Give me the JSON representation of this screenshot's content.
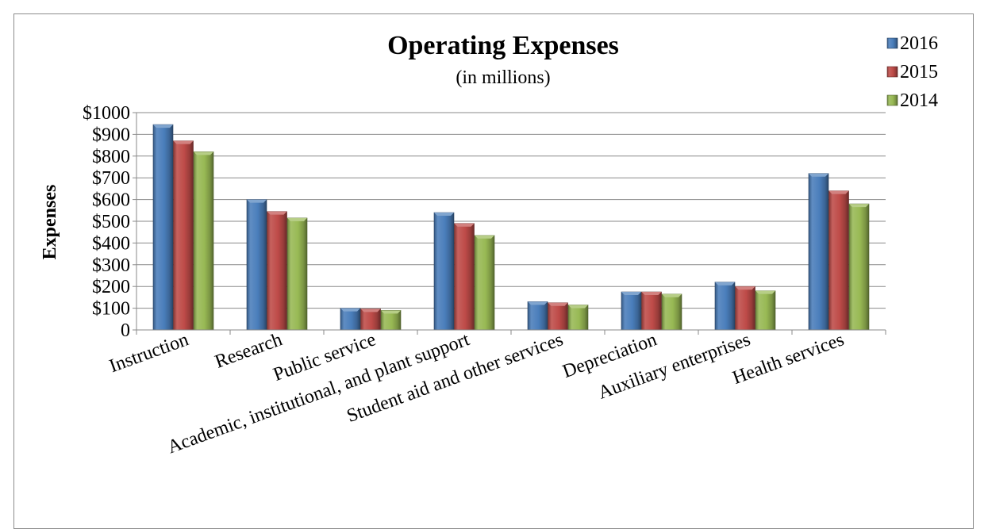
{
  "chart_data": {
    "type": "bar",
    "title": "Operating Expenses",
    "subtitle": "(in millions)",
    "xlabel": "",
    "ylabel": "Expenses",
    "ylim": [
      0,
      1000
    ],
    "yticks": [
      {
        "value": 0,
        "label": "0"
      },
      {
        "value": 100,
        "label": "$100"
      },
      {
        "value": 200,
        "label": "$200"
      },
      {
        "value": 300,
        "label": "$300"
      },
      {
        "value": 400,
        "label": "$400"
      },
      {
        "value": 500,
        "label": "$500"
      },
      {
        "value": 600,
        "label": "$600"
      },
      {
        "value": 700,
        "label": "$700"
      },
      {
        "value": 800,
        "label": "$800"
      },
      {
        "value": 900,
        "label": "$900"
      },
      {
        "value": 1000,
        "label": "$1000"
      }
    ],
    "grid": true,
    "legend_position": "top-right",
    "categories": [
      "Instruction",
      "Research",
      "Public service",
      "Academic, institutional, and plant support",
      "Student aid and other services",
      "Depreciation",
      "Auxiliary enterprises",
      "Health services"
    ],
    "series": [
      {
        "name": "2016",
        "color": "#4a7ebb",
        "values": [
          945,
          600,
          100,
          540,
          130,
          175,
          220,
          720
        ]
      },
      {
        "name": "2015",
        "color": "#be4b48",
        "values": [
          870,
          545,
          97,
          490,
          125,
          175,
          200,
          640
        ]
      },
      {
        "name": "2014",
        "color": "#98b954",
        "values": [
          820,
          515,
          90,
          435,
          115,
          165,
          180,
          580
        ]
      }
    ]
  }
}
